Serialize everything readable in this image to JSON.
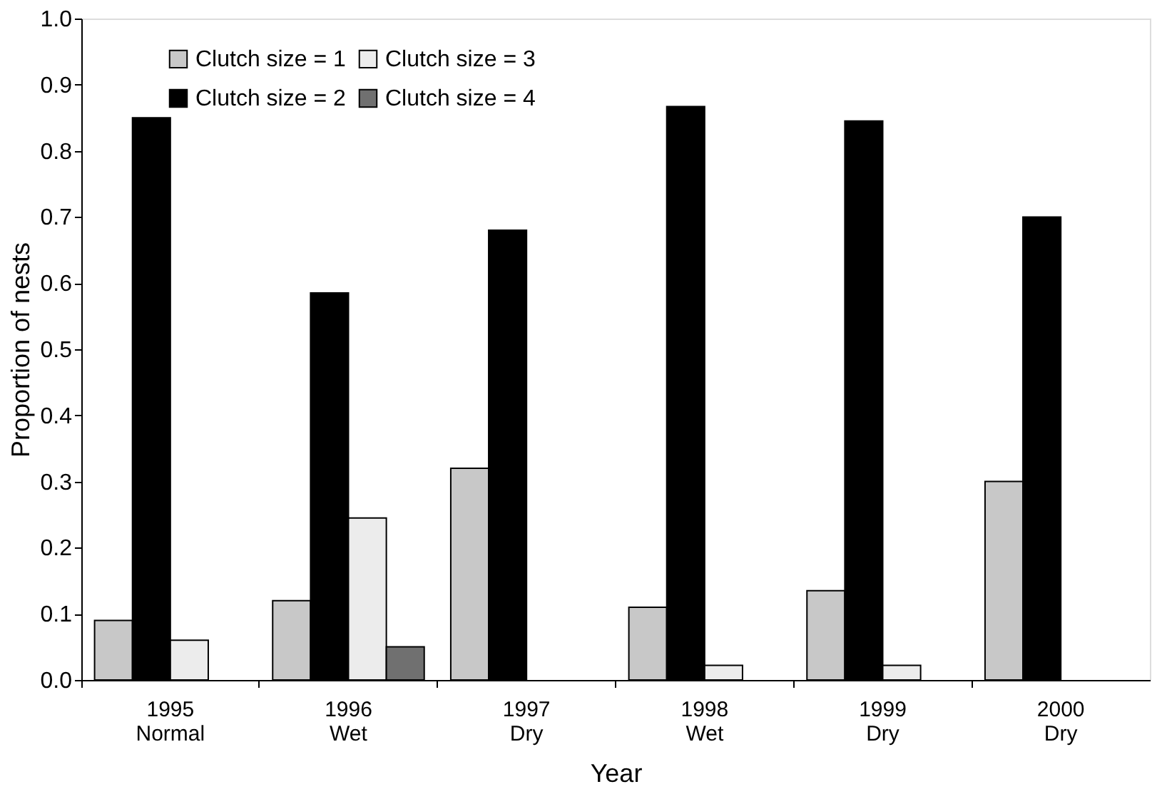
{
  "chart_data": {
    "type": "bar",
    "xlabel": "Year",
    "ylabel": "Proportion of nests",
    "categories": [
      "1995\nNormal",
      "1996\nWet",
      "1997\nDry",
      "1998\nWet",
      "1999\nDry",
      "2000\nDry"
    ],
    "series": [
      {
        "name": "Clutch size = 1",
        "color": "#c8c8c8",
        "values": [
          0.09,
          0.12,
          0.32,
          0.11,
          0.135,
          0.3
        ]
      },
      {
        "name": "Clutch size = 2",
        "color": "#000000",
        "values": [
          0.85,
          0.585,
          0.68,
          0.867,
          0.845,
          0.7
        ]
      },
      {
        "name": "Clutch size = 3",
        "color": "#ececec",
        "values": [
          0.06,
          0.245,
          null,
          0.022,
          0.022,
          null
        ]
      },
      {
        "name": "Clutch size = 4",
        "color": "#707070",
        "values": [
          null,
          0.05,
          null,
          null,
          null,
          null
        ]
      }
    ],
    "ylim": [
      0,
      1
    ],
    "yticks": [
      {
        "value": 0,
        "label": "0.0"
      },
      0.1,
      0.2,
      0.3,
      0.4,
      0.5,
      0.6,
      0.7,
      0.8,
      0.9,
      {
        "value": 1,
        "label": "1.0"
      }
    ],
    "grid": false,
    "legend": "top left"
  }
}
